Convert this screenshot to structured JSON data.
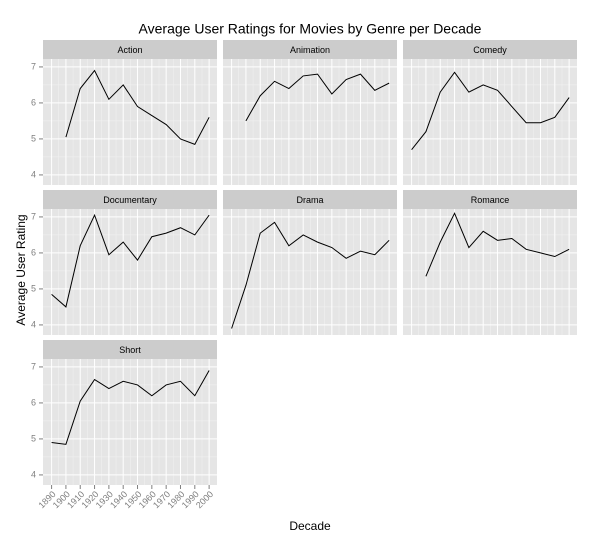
{
  "chart_data": {
    "type": "line",
    "layout": "facet",
    "title": "Average User Ratings for Movies by Genre per Decade",
    "x_label": "Decade",
    "y_label": "Average User Rating",
    "x": [
      1890,
      1900,
      1910,
      1920,
      1930,
      1940,
      1950,
      1960,
      1970,
      1980,
      1990,
      2000
    ],
    "xlim": [
      1884,
      2005.5
    ],
    "xticks": [
      1890,
      1900,
      1910,
      1920,
      1930,
      1940,
      1950,
      1960,
      1970,
      1980,
      1990,
      2000
    ],
    "ylim": [
      3.72,
      7.22
    ],
    "yticks": [
      4,
      5,
      6,
      7
    ],
    "grid": true,
    "series": [
      {
        "name": "Action",
        "color": "#000000",
        "values": [
          null,
          5.05,
          6.4,
          6.9,
          6.1,
          6.5,
          5.9,
          5.65,
          5.4,
          5.0,
          4.85,
          5.6
        ]
      },
      {
        "name": "Animation",
        "color": "#000000",
        "values": [
          null,
          5.5,
          6.2,
          6.6,
          6.4,
          6.75,
          6.8,
          6.25,
          6.65,
          6.8,
          6.35,
          6.55
        ]
      },
      {
        "name": "Comedy",
        "color": "#000000",
        "values": [
          4.7,
          5.2,
          6.3,
          6.85,
          6.3,
          6.5,
          6.35,
          5.9,
          5.45,
          5.45,
          5.6,
          6.15
        ]
      },
      {
        "name": "Documentary",
        "color": "#000000",
        "values": [
          4.85,
          4.5,
          6.2,
          7.05,
          5.95,
          6.3,
          5.8,
          6.45,
          6.55,
          6.7,
          6.5,
          7.05
        ]
      },
      {
        "name": "Drama",
        "color": "#000000",
        "values": [
          3.9,
          5.1,
          6.55,
          6.85,
          6.2,
          6.5,
          6.3,
          6.15,
          5.85,
          6.05,
          5.95,
          6.35
        ]
      },
      {
        "name": "Romance",
        "color": "#000000",
        "values": [
          null,
          5.35,
          6.3,
          7.1,
          6.15,
          6.6,
          6.35,
          6.4,
          6.1,
          6.0,
          5.9,
          6.1
        ]
      },
      {
        "name": "Short",
        "color": "#000000",
        "values": [
          4.9,
          4.85,
          6.05,
          6.65,
          6.4,
          6.6,
          6.5,
          6.2,
          6.5,
          6.6,
          6.2,
          6.9
        ]
      }
    ]
  }
}
